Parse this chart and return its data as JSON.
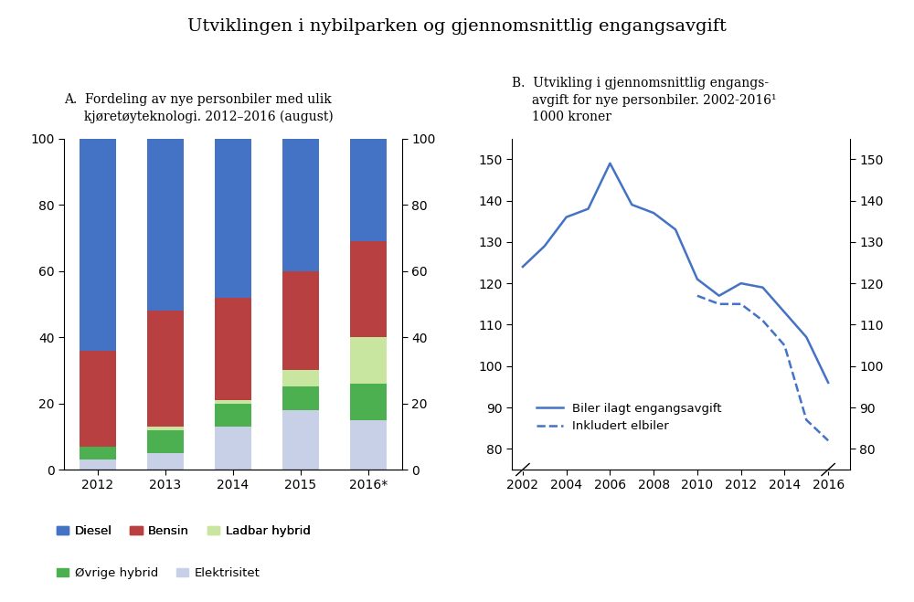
{
  "title": "Utviklingen i nybilparken og gjennomsnittlig engangsavgift",
  "panel_a_title_line1": "A.  Fordeling av nye personbiler med ulik",
  "panel_a_title_line2": "     kjøretøyteknologi. 2012–2016 (august)",
  "panel_b_title_line1": "B.  Utvikling i gjennomsnittlig engangs-",
  "panel_b_title_line2": "     avgift for nye personbiler. 2002-2016¹",
  "panel_b_title_line3": "     1000 kroner",
  "bar_years": [
    "2012",
    "2013",
    "2014",
    "2015",
    "2016*"
  ],
  "bar_data": {
    "Elektrisitet": [
      3,
      5,
      13,
      18,
      15
    ],
    "Ovrige hybrid": [
      4,
      7,
      7,
      7,
      11
    ],
    "Ladbar hybrid": [
      0,
      1,
      1,
      5,
      14
    ],
    "Bensin": [
      29,
      35,
      31,
      30,
      29
    ],
    "Diesel": [
      64,
      52,
      48,
      40,
      31
    ]
  },
  "bar_colors": {
    "Elektrisitet": "#c8d0e8",
    "Ovrige hybrid": "#4caf50",
    "Ladbar hybrid": "#c8e6a0",
    "Bensin": "#b84040",
    "Diesel": "#4472c4"
  },
  "bar_legend_labels": {
    "Elektrisitet": "Elektrisitet",
    "Ovrige hybrid": "Øvrige hybrid",
    "Ladbar hybrid": "Ladbar hybrid",
    "Bensin": "Bensin",
    "Diesel": "Diesel"
  },
  "bar_ylim": [
    0,
    100
  ],
  "bar_yticks": [
    0,
    20,
    40,
    60,
    80,
    100
  ],
  "line_solid_x": [
    2002,
    2003,
    2004,
    2005,
    2006,
    2007,
    2008,
    2009,
    2010,
    2011,
    2012,
    2013,
    2014,
    2015,
    2016
  ],
  "line_solid_y": [
    124,
    129,
    136,
    138,
    149,
    139,
    137,
    133,
    121,
    117,
    120,
    119,
    113,
    107,
    96
  ],
  "line_dashed_x": [
    2010,
    2011,
    2012,
    2013,
    2014,
    2015,
    2016
  ],
  "line_dashed_y": [
    117,
    115,
    115,
    111,
    105,
    87,
    82
  ],
  "line_color": "#4472c4",
  "line_ylim": [
    75,
    155
  ],
  "line_yticks": [
    80,
    90,
    100,
    110,
    120,
    130,
    140,
    150
  ],
  "line_xticks": [
    2002,
    2004,
    2006,
    2008,
    2010,
    2012,
    2014,
    2016
  ],
  "legend_solid": "Biler ilagt engangsavgift",
  "legend_dashed": "Inkludert elbiler",
  "background_color": "#ffffff"
}
